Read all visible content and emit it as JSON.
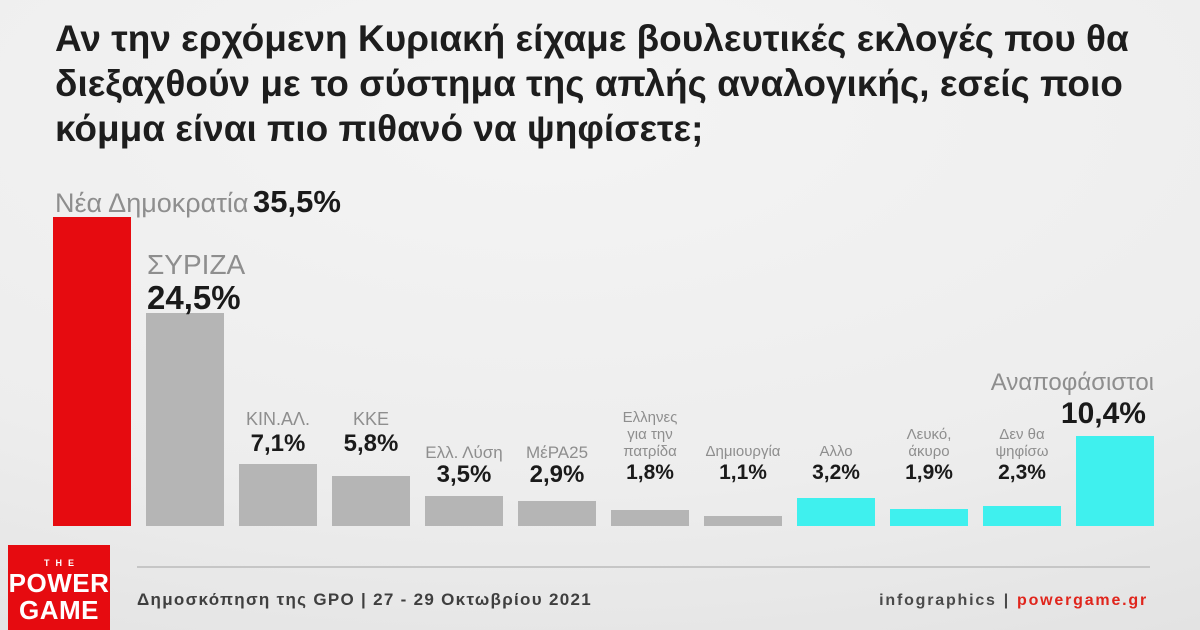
{
  "title": "Αν την ερχόμενη Κυριακή είχαμε βουλευτικές εκλογές που θα διεξαχθούν με το σύστημα της απλής αναλογικής, εσείς ποιο κόμμα είναι πιο πιθανό να ψηφίσετε;",
  "title_lines": [
    "Αν την ερχόμενη Κυριακή είχαμε βουλευτικές εκλογές που θα",
    "διεξαχθούν με το σύστημα της απλής αναλογικής, εσείς ποιο",
    "κόμμα είναι πιο πιθανό να ψηφίσετε;"
  ],
  "colors": {
    "red": "#e60b10",
    "gray": "#b5b5b5",
    "cyan": "#3ff0ee",
    "name_gray": "#8e8e8e",
    "value_black": "#1a1a1a",
    "site_red": "#e0251c"
  },
  "chart_data": {
    "type": "bar",
    "title": "Αν την ερχόμενη Κυριακή είχαμε βουλευτικές εκλογές που θα διεξαχθούν με το σύστημα της απλής αναλογικής, εσείς ποιο κόμμα είναι πιο πιθανό να ψηφίσετε;",
    "xlabel": "",
    "ylabel": "",
    "unit": "%",
    "grid": false,
    "legend": false,
    "ylim": [
      0,
      38
    ],
    "categories": [
      "Νέα Δημοκρατία",
      "ΣΥΡΙΖΑ",
      "ΚΙΝ.ΑΛ.",
      "ΚΚΕ",
      "Ελλ. Λύση",
      "ΜέΡΑ25",
      "Ελληνες για την πατρίδα",
      "Δημιουργία",
      "Αλλο",
      "Λευκό, άκυρο",
      "Δεν θα ψηφίσω",
      "Αναποφάσιστοι"
    ],
    "values": [
      35.5,
      24.5,
      7.1,
      5.8,
      3.5,
      2.9,
      1.8,
      1.1,
      3.2,
      1.9,
      2.3,
      10.4
    ],
    "labels": [
      "35,5%",
      "24,5%",
      "7,1%",
      "5,8%",
      "3,5%",
      "2,9%",
      "1,8%",
      "1,1%",
      "3,2%",
      "1,9%",
      "2,3%",
      "10,4%"
    ],
    "parties": [
      {
        "name": "Νέα Δημοκρατία",
        "name_lines": [
          "Νέα Δημοκρατία"
        ],
        "value": 35.5,
        "display": "35,5%",
        "color": "#e60b10",
        "tier": "nd"
      },
      {
        "name": "ΣΥΡΙΖΑ",
        "name_lines": [
          "ΣΥΡΙΖΑ"
        ],
        "value": 24.5,
        "display": "24,5%",
        "color": "#b5b5b5",
        "tier": "syriza"
      },
      {
        "name": "ΚΙΝ.ΑΛ.",
        "name_lines": [
          "ΚΙΝ.ΑΛ."
        ],
        "value": 7.1,
        "display": "7,1%",
        "color": "#b5b5b5",
        "tier": "mid"
      },
      {
        "name": "ΚΚΕ",
        "name_lines": [
          "ΚΚΕ"
        ],
        "value": 5.8,
        "display": "5,8%",
        "color": "#b5b5b5",
        "tier": "mid"
      },
      {
        "name": "Ελλ. Λύση",
        "name_lines": [
          "Ελλ. Λύση"
        ],
        "value": 3.5,
        "display": "3,5%",
        "color": "#b5b5b5",
        "tier": "small"
      },
      {
        "name": "ΜέΡΑ25",
        "name_lines": [
          "ΜέΡΑ25"
        ],
        "value": 2.9,
        "display": "2,9%",
        "color": "#b5b5b5",
        "tier": "small"
      },
      {
        "name": "Ελληνες για την πατρίδα",
        "name_lines": [
          "Ελληνες",
          "για την",
          "πατρίδα"
        ],
        "value": 1.8,
        "display": "1,8%",
        "color": "#b5b5b5",
        "tier": "tiny"
      },
      {
        "name": "Δημιουργία",
        "name_lines": [
          "Δημιουργία"
        ],
        "value": 1.1,
        "display": "1,1%",
        "color": "#b5b5b5",
        "tier": "tiny"
      },
      {
        "name": "Αλλο",
        "name_lines": [
          "Αλλο"
        ],
        "value": 3.2,
        "display": "3,2%",
        "color": "#3ff0ee",
        "tier": "tiny"
      },
      {
        "name": "Λευκό, άκυρο",
        "name_lines": [
          "Λευκό,",
          "άκυρο"
        ],
        "value": 1.9,
        "display": "1,9%",
        "color": "#3ff0ee",
        "tier": "tiny"
      },
      {
        "name": "Δεν θα ψηφίσω",
        "name_lines": [
          "Δεν θα",
          "ψηφίσω"
        ],
        "value": 2.3,
        "display": "2,3%",
        "color": "#3ff0ee",
        "tier": "tiny"
      },
      {
        "name": "Αναποφάσιστοι",
        "name_lines": [
          "Αναποφάσιστοι"
        ],
        "value": 10.4,
        "display": "10,4%",
        "color": "#3ff0ee",
        "tier": "undecided"
      }
    ]
  },
  "footer": {
    "source": "Δημοσκόπηση της GPO | 27 - 29 Οκτωβρίου 2021",
    "credit_label": "infographics",
    "credit_sep": "|",
    "credit_site": "powergame.gr"
  },
  "logo": {
    "the": "THE",
    "power": "POWER",
    "game": "GAME"
  }
}
